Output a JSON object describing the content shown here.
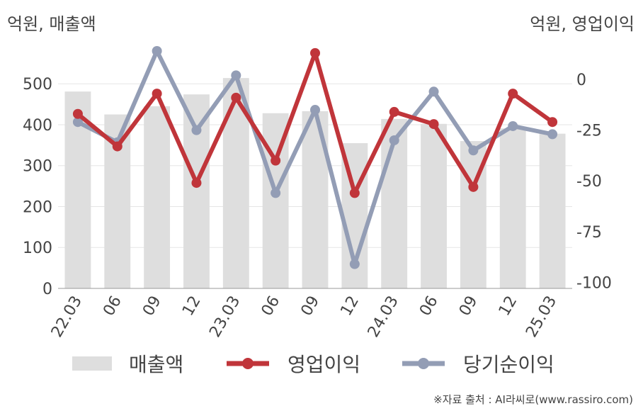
{
  "left_unit": "억원, 매출액",
  "right_unit": "억원, 영업이익",
  "source": "※자료 출처 : AI라씨로(www.rassiro.com)",
  "colors": {
    "revenue": "#dedede",
    "op": "#c0353a",
    "net": "#939db5",
    "grid": "#e6e6e6",
    "axis": "#999999",
    "text": "#444444"
  },
  "chart_data": {
    "type": "bar+line",
    "categories": [
      "22.03",
      "06",
      "09",
      "12",
      "23.03",
      "06",
      "09",
      "12",
      "24.03",
      "06",
      "09",
      "12",
      "25.03"
    ],
    "y_left": {
      "label": "억원, 매출액",
      "range": [
        0,
        580
      ],
      "ticks": [
        0,
        100,
        200,
        300,
        400,
        500
      ]
    },
    "y_right": {
      "label": "억원, 영업이익",
      "range": [
        -103,
        14
      ],
      "ticks": [
        0,
        -25,
        -50,
        -75,
        -100
      ]
    },
    "grid": true,
    "legend_position": "bottom",
    "series": [
      {
        "name": "매출액",
        "type": "bar",
        "axis": "left",
        "color": "#dedede",
        "values": [
          481,
          425,
          445,
          474,
          514,
          428,
          433,
          355,
          414,
          402,
          360,
          391,
          378
        ]
      },
      {
        "name": "영업이익",
        "type": "line",
        "axis": "right",
        "color": "#c0353a",
        "values": [
          -17,
          -33,
          -7,
          -51,
          -9,
          -40,
          13,
          -56,
          -16,
          -22,
          -53,
          -7,
          -21
        ]
      },
      {
        "name": "당기순이익",
        "type": "line",
        "axis": "right",
        "color": "#939db5",
        "values": [
          -21,
          -31,
          14,
          -25,
          2,
          -56,
          -15,
          -91,
          -30,
          -6,
          -35,
          -23,
          -27
        ]
      }
    ]
  }
}
